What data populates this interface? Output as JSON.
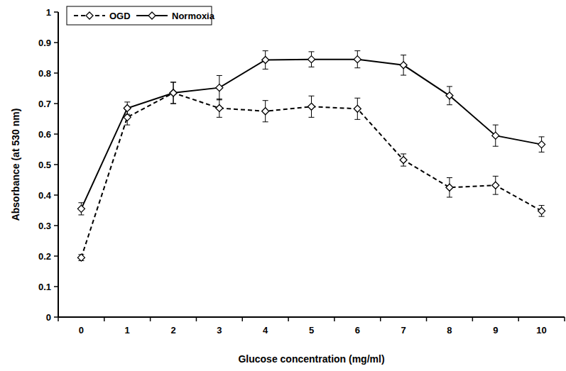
{
  "chart_data": {
    "type": "line",
    "x_label": "Glucose concentration (mg/ml)",
    "y_label": "Absorbance (at 530 nm)",
    "categories": [
      "0",
      "1",
      "2",
      "3",
      "4",
      "5",
      "6",
      "7",
      "8",
      "9",
      "10"
    ],
    "series": [
      {
        "name": "OGD",
        "color": "#000000",
        "marker": "diamond",
        "line_style": "dashed",
        "values": [
          0.195,
          0.655,
          0.735,
          0.685,
          0.675,
          0.69,
          0.683,
          0.515,
          0.425,
          0.432,
          0.348
        ],
        "errors": [
          0.01,
          0.025,
          0.035,
          0.03,
          0.035,
          0.035,
          0.035,
          0.02,
          0.032,
          0.03,
          0.018
        ]
      },
      {
        "name": "Normoxia",
        "color": "#000000",
        "marker": "diamond",
        "line_style": "solid",
        "values": [
          0.355,
          0.685,
          0.735,
          0.752,
          0.843,
          0.845,
          0.845,
          0.826,
          0.726,
          0.595,
          0.566
        ],
        "errors": [
          0.02,
          0.02,
          0.035,
          0.04,
          0.03,
          0.025,
          0.028,
          0.033,
          0.03,
          0.035,
          0.025
        ]
      }
    ],
    "ylim": [
      0,
      1
    ],
    "yticks": [
      0,
      0.1,
      0.2,
      0.3,
      0.4,
      0.5,
      0.6,
      0.7,
      0.8,
      0.9,
      1
    ],
    "grid": false,
    "legend": "top-left"
  }
}
